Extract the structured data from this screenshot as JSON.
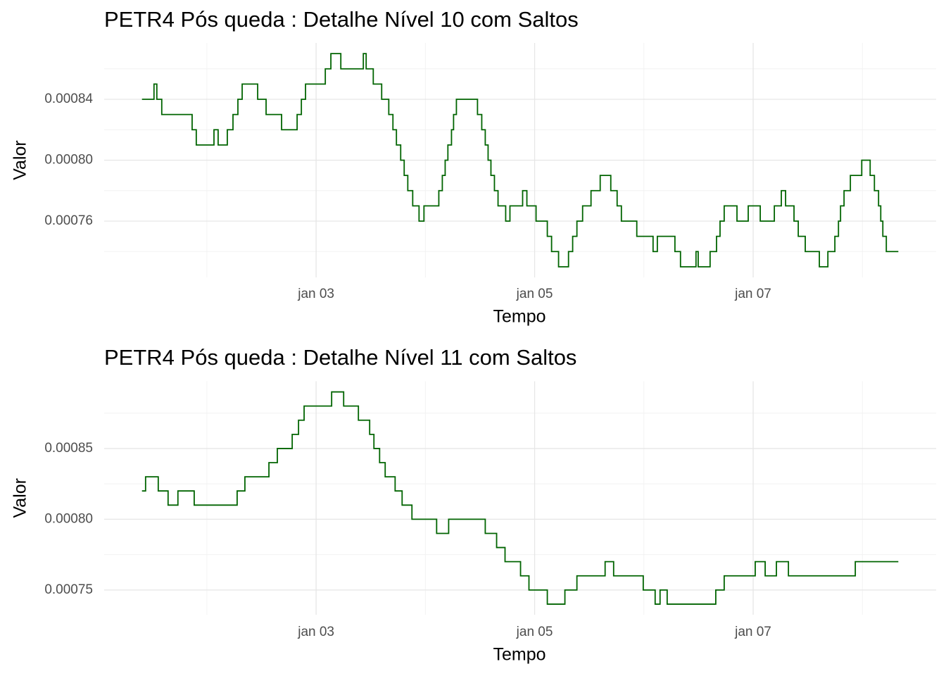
{
  "chart_data": [
    {
      "type": "line",
      "step": "hv",
      "title": "PETR4 Pós queda : Detalhe Nível 10 com Saltos",
      "x_label": "Tempo",
      "y_label": "Valor",
      "color": "#006400",
      "grid": true,
      "x": [
        1.406,
        1.516,
        1.542,
        1.587,
        1.865,
        1.903,
        2.065,
        2.103,
        2.187,
        2.239,
        2.284,
        2.323,
        2.465,
        2.542,
        2.684,
        2.826,
        2.865,
        2.903,
        3.084,
        3.135,
        3.226,
        3.432,
        3.458,
        3.523,
        3.6,
        3.665,
        3.703,
        3.735,
        3.774,
        3.806,
        3.839,
        3.884,
        3.942,
        3.987,
        4.123,
        4.155,
        4.181,
        4.206,
        4.239,
        4.258,
        4.284,
        4.477,
        4.516,
        4.548,
        4.574,
        4.6,
        4.632,
        4.665,
        4.735,
        4.774,
        4.89,
        4.929,
        5.013,
        5.116,
        5.155,
        5.219,
        5.31,
        5.348,
        5.387,
        5.439,
        5.516,
        5.6,
        5.697,
        5.755,
        5.794,
        5.935,
        6.084,
        6.123,
        6.284,
        6.335,
        6.477,
        6.497,
        6.606,
        6.665,
        6.697,
        6.735,
        6.852,
        6.955,
        7.065,
        7.194,
        7.258,
        7.297,
        7.374,
        7.413,
        7.477,
        7.606,
        7.684,
        7.748,
        7.781,
        7.8,
        7.832,
        7.89,
        7.994,
        8.071,
        8.11,
        8.148,
        8.168,
        8.187,
        8.219,
        8.329
      ],
      "values": [
        0.00084,
        0.00085,
        0.00084,
        0.00083,
        0.00082,
        0.00081,
        0.00082,
        0.00081,
        0.00082,
        0.00083,
        0.00084,
        0.00085,
        0.00084,
        0.00083,
        0.00082,
        0.00083,
        0.00084,
        0.00085,
        0.00086,
        0.00087,
        0.00086,
        0.00087,
        0.00086,
        0.00085,
        0.00084,
        0.00083,
        0.00082,
        0.00081,
        0.0008,
        0.00079,
        0.00078,
        0.00077,
        0.00076,
        0.00077,
        0.00078,
        0.00079,
        0.0008,
        0.00081,
        0.00082,
        0.00083,
        0.00084,
        0.00083,
        0.00082,
        0.00081,
        0.0008,
        0.00079,
        0.00078,
        0.00077,
        0.00076,
        0.00077,
        0.00078,
        0.00077,
        0.00076,
        0.00075,
        0.00074,
        0.00073,
        0.00074,
        0.00075,
        0.00076,
        0.00077,
        0.00078,
        0.00079,
        0.00078,
        0.00077,
        0.00076,
        0.00075,
        0.00074,
        0.00075,
        0.00074,
        0.00073,
        0.00074,
        0.00073,
        0.00074,
        0.00075,
        0.00076,
        0.00077,
        0.00076,
        0.00077,
        0.00076,
        0.00077,
        0.00078,
        0.00077,
        0.00076,
        0.00075,
        0.00074,
        0.00073,
        0.00074,
        0.00075,
        0.00076,
        0.00077,
        0.00078,
        0.00079,
        0.0008,
        0.00079,
        0.00078,
        0.00077,
        0.00076,
        0.00075,
        0.00074,
        0.00074
      ],
      "xlim": [
        1.06,
        8.675
      ],
      "xticks": [
        {
          "value": 3,
          "label": "jan 03"
        },
        {
          "value": 5,
          "label": "jan 05"
        },
        {
          "value": 7,
          "label": "jan 07"
        }
      ],
      "minor_xticks": [
        2,
        4,
        6,
        8
      ],
      "ylim": [
        0.000723,
        0.000877
      ],
      "yticks": [
        0.00076,
        {
          "value": 0.0008,
          "label": "0.00080"
        },
        0.00084
      ],
      "minor_yticks": [
        0.00074,
        0.00078,
        0.00082,
        0.00086
      ]
    },
    {
      "type": "line",
      "step": "hv",
      "title": "PETR4 Pós queda : Detalhe Nível 11 com Saltos",
      "x_label": "Tempo",
      "y_label": "Valor",
      "color": "#006400",
      "grid": true,
      "x": [
        1.406,
        1.439,
        1.555,
        1.645,
        1.735,
        1.884,
        2.277,
        2.348,
        2.568,
        2.645,
        2.781,
        2.839,
        2.89,
        3.142,
        3.252,
        3.387,
        3.49,
        3.529,
        3.581,
        3.632,
        3.723,
        3.787,
        3.877,
        4.103,
        4.213,
        4.548,
        4.652,
        4.729,
        4.871,
        4.948,
        5.116,
        5.277,
        5.387,
        5.645,
        5.723,
        5.994,
        6.103,
        6.148,
        6.213,
        6.658,
        6.735,
        7.019,
        7.11,
        7.213,
        7.323,
        7.935,
        8.329
      ],
      "values": [
        0.00082,
        0.00083,
        0.00082,
        0.00081,
        0.00082,
        0.00081,
        0.00082,
        0.00083,
        0.00084,
        0.00085,
        0.00086,
        0.00087,
        0.00088,
        0.00089,
        0.00088,
        0.00087,
        0.00086,
        0.00085,
        0.00084,
        0.00083,
        0.00082,
        0.00081,
        0.0008,
        0.00079,
        0.0008,
        0.00079,
        0.00078,
        0.00077,
        0.00076,
        0.00075,
        0.00074,
        0.00075,
        0.00076,
        0.00077,
        0.00076,
        0.00075,
        0.00074,
        0.00075,
        0.00074,
        0.00075,
        0.00076,
        0.00077,
        0.00076,
        0.00077,
        0.00076,
        0.00077,
        0.00077
      ],
      "xlim": [
        1.06,
        8.675
      ],
      "xticks": [
        {
          "value": 3,
          "label": "jan 03"
        },
        {
          "value": 5,
          "label": "jan 05"
        },
        {
          "value": 7,
          "label": "jan 07"
        }
      ],
      "minor_xticks": [
        2,
        4,
        6,
        8
      ],
      "ylim": [
        0.0007325,
        0.0008975
      ],
      "yticks": [
        0.00075,
        {
          "value": 0.0008,
          "label": "0.00080"
        },
        0.00085
      ],
      "minor_yticks": [
        0.000775,
        0.000825,
        0.000875
      ]
    }
  ]
}
